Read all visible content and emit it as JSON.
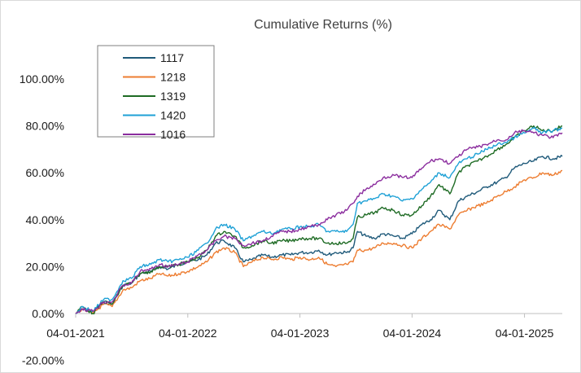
{
  "chart_data": {
    "type": "line",
    "title": "Cumulative Returns (%)",
    "xlabel": "",
    "ylabel": "",
    "ylim": [
      -20,
      100
    ],
    "yticks": [
      "-20.00%",
      "0.00%",
      "20.00%",
      "40.00%",
      "60.00%",
      "80.00%",
      "100.00%"
    ],
    "ytick_values": [
      -20,
      0,
      20,
      40,
      60,
      80,
      100
    ],
    "xticks": [
      "04-01-2021",
      "04-01-2022",
      "04-01-2023",
      "04-01-2024",
      "04-01-2025"
    ],
    "xtick_values": [
      "2021-01-04",
      "2022-01-04",
      "2023-01-04",
      "2024-01-04",
      "2025-01-04"
    ],
    "x_range": [
      "2021-01-04",
      "2025-05-07"
    ],
    "grid": false,
    "legend_position": "top-left",
    "series": [
      {
        "name": "1117",
        "color": "#1f5a7a",
        "points": [
          [
            "2021-01-04",
            0
          ],
          [
            "2021-01-25",
            2
          ],
          [
            "2021-03-01",
            1
          ],
          [
            "2021-04-05",
            5
          ],
          [
            "2021-05-03",
            4
          ],
          [
            "2021-06-07",
            12
          ],
          [
            "2021-07-05",
            13
          ],
          [
            "2021-08-02",
            17
          ],
          [
            "2021-09-06",
            18
          ],
          [
            "2021-10-04",
            20
          ],
          [
            "2021-11-01",
            19
          ],
          [
            "2021-12-06",
            21
          ],
          [
            "2022-01-04",
            22
          ],
          [
            "2022-02-07",
            23
          ],
          [
            "2022-03-07",
            25
          ],
          [
            "2022-04-04",
            30
          ],
          [
            "2022-05-02",
            31
          ],
          [
            "2022-06-06",
            28
          ],
          [
            "2022-07-04",
            22
          ],
          [
            "2022-08-01",
            23
          ],
          [
            "2022-09-05",
            25
          ],
          [
            "2022-10-03",
            24
          ],
          [
            "2022-11-07",
            25
          ],
          [
            "2022-12-05",
            25
          ],
          [
            "2023-01-04",
            26
          ],
          [
            "2023-02-06",
            26
          ],
          [
            "2023-03-06",
            27
          ],
          [
            "2023-04-03",
            25
          ],
          [
            "2023-05-01",
            26
          ],
          [
            "2023-06-05",
            26
          ],
          [
            "2023-06-26",
            28
          ],
          [
            "2023-07-10",
            35
          ],
          [
            "2023-08-07",
            33
          ],
          [
            "2023-09-04",
            32
          ],
          [
            "2023-10-02",
            34
          ],
          [
            "2023-11-06",
            33
          ],
          [
            "2023-12-04",
            32
          ],
          [
            "2024-01-04",
            34
          ],
          [
            "2024-02-05",
            38
          ],
          [
            "2024-03-04",
            40
          ],
          [
            "2024-04-01",
            44
          ],
          [
            "2024-05-06",
            40
          ],
          [
            "2024-06-03",
            48
          ],
          [
            "2024-07-01",
            50
          ],
          [
            "2024-08-05",
            52
          ],
          [
            "2024-09-02",
            54
          ],
          [
            "2024-10-07",
            56
          ],
          [
            "2024-11-04",
            58
          ],
          [
            "2024-12-02",
            62
          ],
          [
            "2025-01-04",
            64
          ],
          [
            "2025-02-03",
            65
          ],
          [
            "2025-03-03",
            67
          ],
          [
            "2025-04-07",
            66
          ],
          [
            "2025-05-07",
            67
          ]
        ]
      },
      {
        "name": "1218",
        "color": "#ed7d31",
        "points": [
          [
            "2021-01-04",
            0
          ],
          [
            "2021-01-25",
            2
          ],
          [
            "2021-03-01",
            0
          ],
          [
            "2021-04-05",
            4
          ],
          [
            "2021-05-03",
            3
          ],
          [
            "2021-06-07",
            10
          ],
          [
            "2021-07-05",
            11
          ],
          [
            "2021-08-02",
            14
          ],
          [
            "2021-09-06",
            15
          ],
          [
            "2021-10-04",
            17
          ],
          [
            "2021-11-01",
            16
          ],
          [
            "2021-12-06",
            17
          ],
          [
            "2022-01-04",
            18
          ],
          [
            "2022-02-07",
            20
          ],
          [
            "2022-03-07",
            22
          ],
          [
            "2022-04-04",
            26
          ],
          [
            "2022-05-02",
            28
          ],
          [
            "2022-06-06",
            26
          ],
          [
            "2022-07-04",
            20
          ],
          [
            "2022-08-01",
            22
          ],
          [
            "2022-09-05",
            24
          ],
          [
            "2022-10-03",
            23
          ],
          [
            "2022-11-07",
            24
          ],
          [
            "2022-12-05",
            23
          ],
          [
            "2023-01-04",
            24
          ],
          [
            "2023-02-06",
            23
          ],
          [
            "2023-03-06",
            24
          ],
          [
            "2023-04-03",
            21
          ],
          [
            "2023-05-01",
            20
          ],
          [
            "2023-06-05",
            21
          ],
          [
            "2023-06-26",
            22
          ],
          [
            "2023-07-10",
            27
          ],
          [
            "2023-08-07",
            27
          ],
          [
            "2023-09-04",
            28
          ],
          [
            "2023-10-02",
            30
          ],
          [
            "2023-11-06",
            30
          ],
          [
            "2023-12-04",
            29
          ],
          [
            "2024-01-04",
            28
          ],
          [
            "2024-02-05",
            32
          ],
          [
            "2024-03-04",
            35
          ],
          [
            "2024-04-01",
            38
          ],
          [
            "2024-05-06",
            36
          ],
          [
            "2024-06-03",
            42
          ],
          [
            "2024-07-01",
            44
          ],
          [
            "2024-08-05",
            46
          ],
          [
            "2024-09-02",
            47
          ],
          [
            "2024-10-07",
            50
          ],
          [
            "2024-11-04",
            52
          ],
          [
            "2024-12-02",
            54
          ],
          [
            "2025-01-04",
            57
          ],
          [
            "2025-02-03",
            58
          ],
          [
            "2025-03-03",
            60
          ],
          [
            "2025-04-07",
            59
          ],
          [
            "2025-05-07",
            61
          ]
        ]
      },
      {
        "name": "1319",
        "color": "#1e6b24",
        "points": [
          [
            "2021-01-04",
            0
          ],
          [
            "2021-01-25",
            3
          ],
          [
            "2021-03-01",
            0
          ],
          [
            "2021-04-05",
            5
          ],
          [
            "2021-05-03",
            4
          ],
          [
            "2021-06-07",
            12
          ],
          [
            "2021-07-05",
            13
          ],
          [
            "2021-08-02",
            17
          ],
          [
            "2021-09-06",
            18
          ],
          [
            "2021-10-04",
            20
          ],
          [
            "2021-11-01",
            20
          ],
          [
            "2021-12-06",
            21
          ],
          [
            "2022-01-04",
            22
          ],
          [
            "2022-02-07",
            24
          ],
          [
            "2022-03-07",
            27
          ],
          [
            "2022-04-04",
            33
          ],
          [
            "2022-05-02",
            35
          ],
          [
            "2022-06-06",
            33
          ],
          [
            "2022-07-04",
            28
          ],
          [
            "2022-08-01",
            29
          ],
          [
            "2022-09-05",
            31
          ],
          [
            "2022-10-03",
            30
          ],
          [
            "2022-11-07",
            31
          ],
          [
            "2022-12-05",
            31
          ],
          [
            "2023-01-04",
            32
          ],
          [
            "2023-02-06",
            32
          ],
          [
            "2023-03-06",
            32
          ],
          [
            "2023-04-03",
            30
          ],
          [
            "2023-05-01",
            30
          ],
          [
            "2023-06-05",
            30
          ],
          [
            "2023-06-26",
            32
          ],
          [
            "2023-07-10",
            41
          ],
          [
            "2023-08-07",
            42
          ],
          [
            "2023-09-04",
            43
          ],
          [
            "2023-10-02",
            45
          ],
          [
            "2023-11-06",
            44
          ],
          [
            "2023-12-04",
            42
          ],
          [
            "2024-01-04",
            42
          ],
          [
            "2024-02-05",
            46
          ],
          [
            "2024-03-04",
            50
          ],
          [
            "2024-04-01",
            55
          ],
          [
            "2024-05-06",
            51
          ],
          [
            "2024-06-03",
            60
          ],
          [
            "2024-07-01",
            63
          ],
          [
            "2024-08-05",
            65
          ],
          [
            "2024-09-02",
            67
          ],
          [
            "2024-10-07",
            70
          ],
          [
            "2024-11-04",
            72
          ],
          [
            "2024-12-02",
            75
          ],
          [
            "2025-01-04",
            78
          ],
          [
            "2025-02-03",
            80
          ],
          [
            "2025-03-03",
            78
          ],
          [
            "2025-04-07",
            78
          ],
          [
            "2025-05-07",
            80
          ]
        ]
      },
      {
        "name": "1420",
        "color": "#1fa1d6",
        "points": [
          [
            "2021-01-04",
            0
          ],
          [
            "2021-01-25",
            3
          ],
          [
            "2021-03-01",
            1
          ],
          [
            "2021-04-05",
            6
          ],
          [
            "2021-05-03",
            6
          ],
          [
            "2021-06-07",
            14
          ],
          [
            "2021-07-05",
            15
          ],
          [
            "2021-08-02",
            20
          ],
          [
            "2021-09-06",
            21
          ],
          [
            "2021-10-04",
            23
          ],
          [
            "2021-11-01",
            22
          ],
          [
            "2021-12-06",
            23
          ],
          [
            "2022-01-04",
            24
          ],
          [
            "2022-02-07",
            27
          ],
          [
            "2022-03-07",
            30
          ],
          [
            "2022-04-04",
            36
          ],
          [
            "2022-05-02",
            38
          ],
          [
            "2022-06-06",
            36
          ],
          [
            "2022-07-04",
            31
          ],
          [
            "2022-08-01",
            33
          ],
          [
            "2022-09-05",
            35
          ],
          [
            "2022-10-03",
            34
          ],
          [
            "2022-11-07",
            36
          ],
          [
            "2022-12-05",
            36
          ],
          [
            "2023-01-04",
            37
          ],
          [
            "2023-02-06",
            37
          ],
          [
            "2023-03-06",
            38
          ],
          [
            "2023-04-03",
            35
          ],
          [
            "2023-05-01",
            35
          ],
          [
            "2023-06-05",
            35
          ],
          [
            "2023-06-26",
            38
          ],
          [
            "2023-07-10",
            47
          ],
          [
            "2023-08-07",
            48
          ],
          [
            "2023-09-04",
            49
          ],
          [
            "2023-10-02",
            51
          ],
          [
            "2023-11-06",
            50
          ],
          [
            "2023-12-04",
            48
          ],
          [
            "2024-01-04",
            49
          ],
          [
            "2024-02-05",
            53
          ],
          [
            "2024-03-04",
            56
          ],
          [
            "2024-04-01",
            60
          ],
          [
            "2024-05-06",
            58
          ],
          [
            "2024-06-03",
            64
          ],
          [
            "2024-07-01",
            66
          ],
          [
            "2024-08-05",
            68
          ],
          [
            "2024-09-02",
            70
          ],
          [
            "2024-10-07",
            72
          ],
          [
            "2024-11-04",
            73
          ],
          [
            "2024-12-02",
            75
          ],
          [
            "2025-01-04",
            77
          ],
          [
            "2025-02-03",
            79
          ],
          [
            "2025-03-03",
            77
          ],
          [
            "2025-04-07",
            78
          ],
          [
            "2025-05-07",
            79
          ]
        ]
      },
      {
        "name": "1016",
        "color": "#8b2d9e",
        "points": [
          [
            "2021-01-04",
            0
          ],
          [
            "2021-01-25",
            2
          ],
          [
            "2021-03-01",
            1
          ],
          [
            "2021-04-05",
            5
          ],
          [
            "2021-05-03",
            5
          ],
          [
            "2021-06-07",
            12
          ],
          [
            "2021-07-05",
            13
          ],
          [
            "2021-08-02",
            18
          ],
          [
            "2021-09-06",
            19
          ],
          [
            "2021-10-04",
            21
          ],
          [
            "2021-11-01",
            20
          ],
          [
            "2021-12-06",
            21
          ],
          [
            "2022-01-04",
            22
          ],
          [
            "2022-02-07",
            25
          ],
          [
            "2022-03-07",
            27
          ],
          [
            "2022-04-04",
            31
          ],
          [
            "2022-05-02",
            33
          ],
          [
            "2022-06-06",
            32
          ],
          [
            "2022-07-04",
            29
          ],
          [
            "2022-08-01",
            30
          ],
          [
            "2022-09-05",
            31
          ],
          [
            "2022-10-03",
            33
          ],
          [
            "2022-11-07",
            35
          ],
          [
            "2022-12-05",
            35
          ],
          [
            "2023-01-04",
            36
          ],
          [
            "2023-02-06",
            37
          ],
          [
            "2023-03-06",
            38
          ],
          [
            "2023-04-03",
            40
          ],
          [
            "2023-05-01",
            42
          ],
          [
            "2023-06-05",
            44
          ],
          [
            "2023-06-26",
            47
          ],
          [
            "2023-07-10",
            50
          ],
          [
            "2023-08-07",
            53
          ],
          [
            "2023-09-04",
            55
          ],
          [
            "2023-10-02",
            58
          ],
          [
            "2023-11-06",
            59
          ],
          [
            "2023-12-04",
            58
          ],
          [
            "2024-01-04",
            58
          ],
          [
            "2024-02-05",
            62
          ],
          [
            "2024-03-04",
            65
          ],
          [
            "2024-04-01",
            66
          ],
          [
            "2024-05-06",
            64
          ],
          [
            "2024-06-03",
            67
          ],
          [
            "2024-07-01",
            70
          ],
          [
            "2024-08-05",
            71
          ],
          [
            "2024-09-02",
            72
          ],
          [
            "2024-10-07",
            74
          ],
          [
            "2024-11-04",
            74
          ],
          [
            "2024-12-02",
            77
          ],
          [
            "2025-01-04",
            78
          ],
          [
            "2025-02-03",
            77
          ],
          [
            "2025-03-03",
            76
          ],
          [
            "2025-04-07",
            75
          ],
          [
            "2025-05-07",
            77
          ]
        ]
      }
    ]
  }
}
